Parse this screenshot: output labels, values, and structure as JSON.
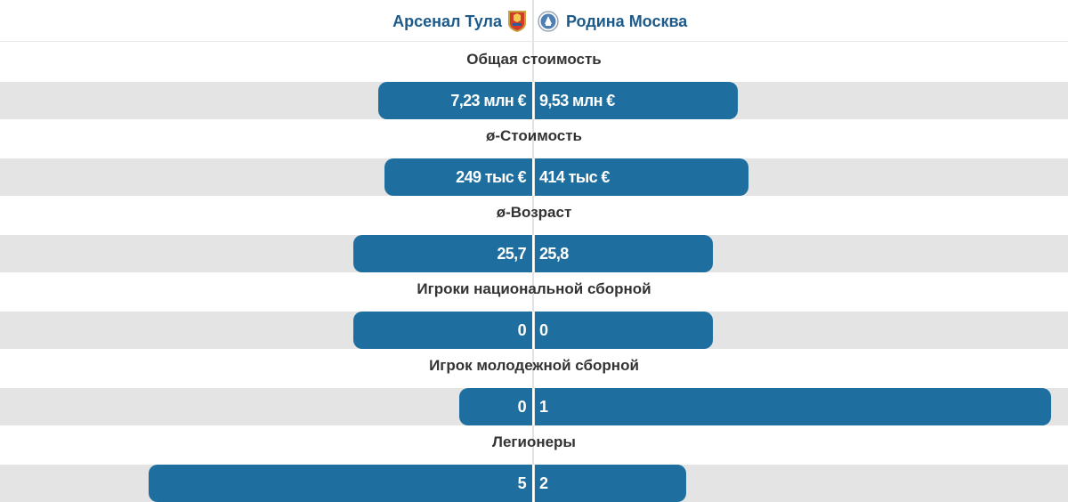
{
  "teams": {
    "home": {
      "name": "Арсенал Тула",
      "crest_icon": "arsenal-tula-crest-icon"
    },
    "away": {
      "name": "Родина Москва",
      "crest_icon": "rodina-moscow-crest-icon"
    }
  },
  "colors": {
    "bar": "#1e6f9f",
    "track": "#e4e4e4",
    "team_name": "#1c5a8a",
    "row_title": "#333333"
  },
  "stats": [
    {
      "label": "Общая стоимость",
      "home_value": "7,23 млн €",
      "away_value": "9,53 млн €",
      "home_share": 0.29,
      "away_share": 0.38
    },
    {
      "label": "ø-Стоимость",
      "home_value": "249 тыс €",
      "away_value": "414 тыс €",
      "home_share": 0.2783,
      "away_share": 0.4
    },
    {
      "label": "ø-Возраст",
      "home_value": "25,7",
      "away_value": "25,8",
      "home_share": 0.3367,
      "away_share": 0.3333
    },
    {
      "label": "Игроки национальной сборной",
      "home_value": "0",
      "away_value": "0",
      "home_share": 0.3367,
      "away_share": 0.3333
    },
    {
      "label": "Игрок молодежной сборной",
      "home_value": "0",
      "away_value": "1",
      "home_share": 0.1383,
      "away_share": 0.9667
    },
    {
      "label": "Легионеры",
      "home_value": "5",
      "away_value": "2",
      "home_share": 0.72,
      "away_share": 0.2833
    }
  ]
}
